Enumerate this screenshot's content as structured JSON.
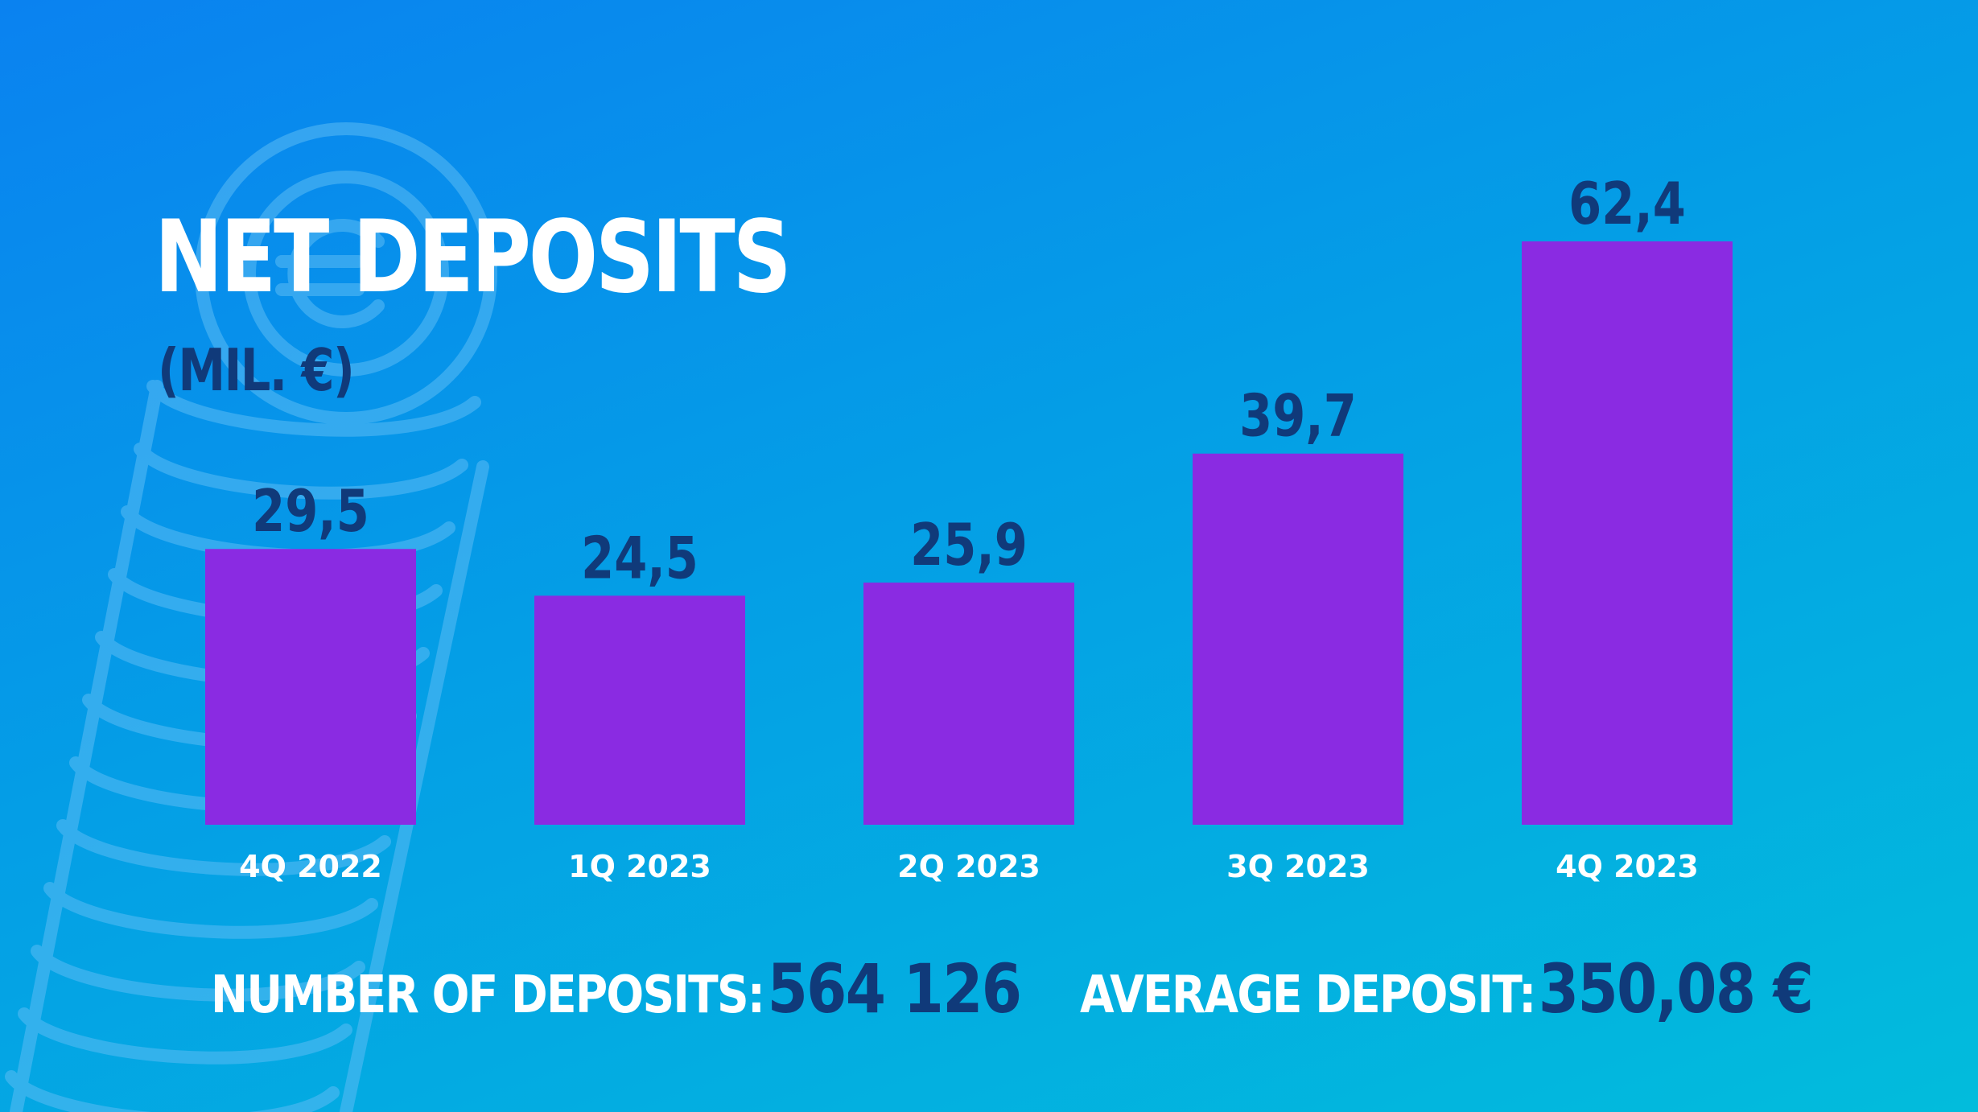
{
  "colors": {
    "bar": "#8a2be2",
    "value_label": "#103a7a",
    "category_label": "#ffffff",
    "decoration": "#5bbcf5"
  },
  "decoration": {
    "icon": "coin-stack-euro-icon"
  },
  "chart_data": {
    "type": "bar",
    "title": "NET DEPOSITS",
    "subtitle": "(MIL. €)",
    "categories": [
      "4Q 2022",
      "1Q 2023",
      "2Q 2023",
      "3Q 2023",
      "4Q 2023"
    ],
    "values": [
      29.5,
      24.5,
      25.9,
      39.7,
      62.4
    ],
    "value_labels": [
      "29,5",
      "24,5",
      "25,9",
      "39,7",
      "62,4"
    ],
    "grid": false,
    "legend": "none"
  },
  "stats": {
    "deposits_label": "NUMBER OF DEPOSITS:",
    "deposits_value": "564 126",
    "average_label": "AVERAGE DEPOSIT:",
    "average_value": "350,08 €"
  }
}
